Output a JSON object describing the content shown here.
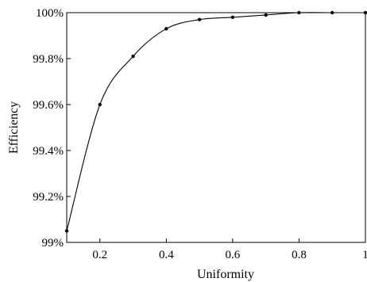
{
  "chart_data": {
    "type": "line",
    "xlabel": "Uniformity",
    "ylabel": "Efficiency",
    "xlim": [
      0.1,
      1.0
    ],
    "ylim": [
      99.0,
      100.0
    ],
    "x_ticks": [
      0.2,
      0.4,
      0.6,
      0.8,
      1.0
    ],
    "x_tick_labels": [
      "0.2",
      "0.4",
      "0.6",
      "0.8",
      "1"
    ],
    "y_ticks": [
      99.0,
      99.2,
      99.4,
      99.6,
      99.8,
      100.0
    ],
    "y_tick_labels": [
      "99%",
      "99.2%",
      "99.4%",
      "99.6%",
      "99.8%",
      "100%"
    ],
    "grid": false,
    "series": [
      {
        "x": [
          0.1,
          0.2,
          0.3,
          0.4,
          0.5,
          0.6,
          0.7,
          0.8,
          0.9,
          1.0
        ],
        "values": [
          99.05,
          99.6,
          99.81,
          99.93,
          99.97,
          99.98,
          99.99,
          100.0,
          100.0,
          100.0
        ],
        "color": "#000000",
        "marker": "dot"
      }
    ]
  }
}
